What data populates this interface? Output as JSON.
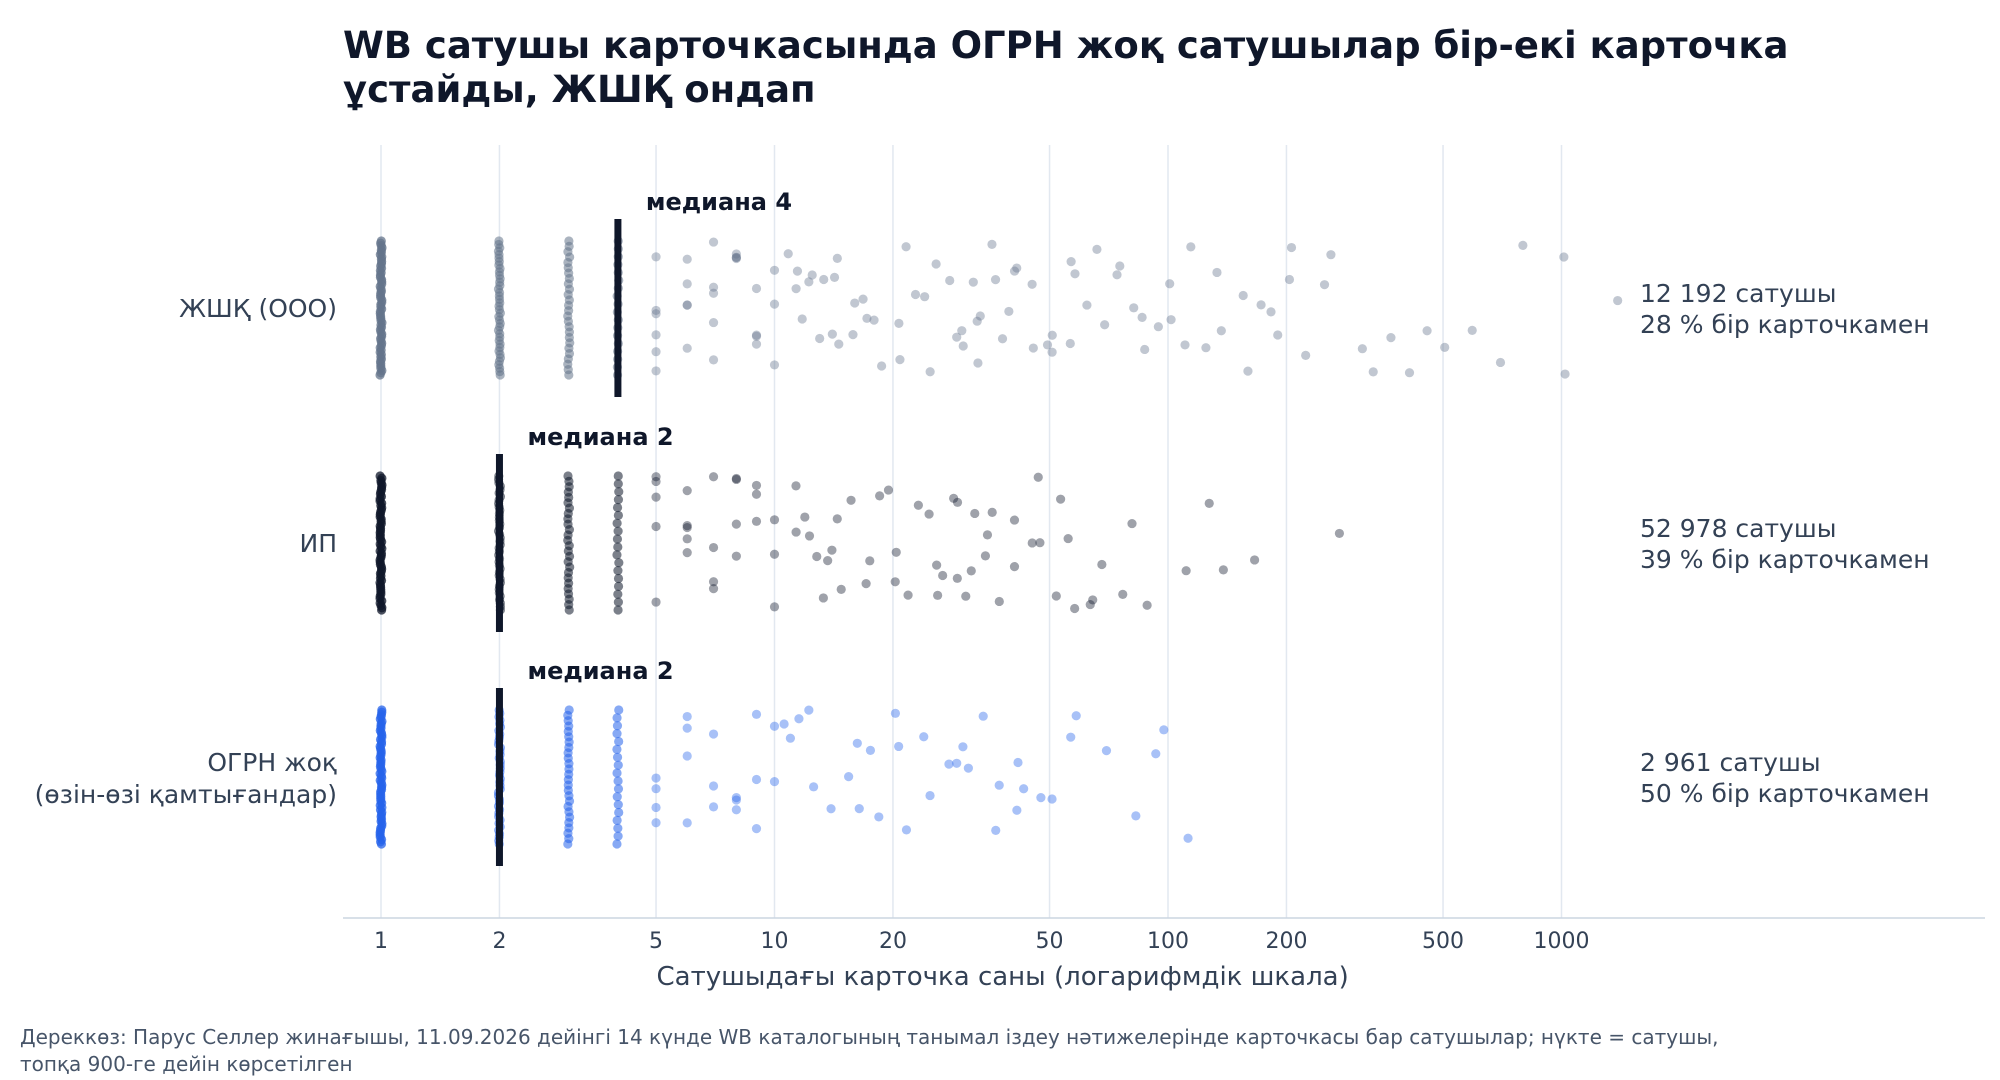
{
  "chart_data": {
    "type": "scatter",
    "title": "WB сатушы карточкасында ОГРН жоқ сатушылар бір-екі карточка ұстайды, ЖШҚ ондап",
    "xlabel": "Сатушыдағы карточка саны (логарифмдік шкала)",
    "x_scale": "log",
    "xlim": [
      0.8,
      3000
    ],
    "x_ticks": [
      1,
      2,
      5,
      10,
      20,
      50,
      100,
      200,
      500,
      1000
    ],
    "x_tick_labels": [
      "1",
      "2",
      "5",
      "10",
      "20",
      "50",
      "100",
      "200",
      "500",
      "1000"
    ],
    "grid": true,
    "colors": {
      "ЖШҚ": "#64748b",
      "ИП": "#0f172a",
      "ОГРН": "#2563eb",
      "median": "#0f172a",
      "text": "#334155",
      "axis": "#cbd5e1"
    },
    "groups": [
      {
        "label": "ЖШҚ (ООО)",
        "median": 4,
        "median_label": "медиана 4",
        "sellers_label": "12 192 сатушы",
        "share_label": "28 % бір карточкамен",
        "color": "#64748b",
        "dots_shown": 900,
        "points_beyond_median": [
          5,
          5,
          5,
          5,
          5,
          5,
          6,
          6,
          6,
          6,
          6,
          7,
          7,
          7,
          7,
          7,
          8,
          8,
          8,
          8,
          9,
          9,
          9,
          9,
          10,
          10,
          10,
          11,
          11,
          11,
          12,
          12,
          12,
          13,
          13,
          14,
          14,
          15,
          15,
          16,
          16,
          17,
          17,
          18,
          19,
          20,
          21,
          22,
          23,
          24,
          25,
          26,
          27,
          28,
          29,
          30,
          31,
          32,
          33,
          34,
          35,
          36,
          37,
          38,
          40,
          42,
          44,
          46,
          48,
          50,
          52,
          55,
          58,
          60,
          63,
          66,
          70,
          73,
          77,
          80,
          85,
          90,
          95,
          100,
          105,
          110,
          115,
          120,
          130,
          140,
          150,
          160,
          170,
          180,
          190,
          200,
          210,
          230,
          250,
          270,
          300,
          330,
          360,
          400,
          450,
          520,
          600,
          700,
          800,
          1000,
          1050,
          1400
        ]
      },
      {
        "label": "ИП",
        "median": 2,
        "median_label": "медиана 2",
        "sellers_label": "52 978 сатушы",
        "share_label": "39 % бір карточкамен",
        "color": "#0f172a",
        "dots_shown": 900,
        "points_beyond_median": [
          5,
          5,
          5,
          5,
          5,
          6,
          6,
          6,
          6,
          6,
          7,
          7,
          7,
          7,
          8,
          8,
          8,
          8,
          9,
          9,
          9,
          10,
          10,
          10,
          11,
          11,
          12,
          12,
          13,
          13,
          14,
          14,
          15,
          15,
          16,
          17,
          17,
          18,
          19,
          20,
          21,
          22,
          23,
          24,
          25,
          26,
          27,
          28,
          29,
          30,
          31,
          32,
          33,
          34,
          35,
          36,
          38,
          40,
          42,
          44,
          46,
          48,
          50,
          52,
          55,
          58,
          62,
          66,
          70,
          75,
          80,
          90,
          110,
          125,
          140,
          160,
          275
        ]
      },
      {
        "label": "ОГРН жоқ\n(өзін-өзі қамтығандар)",
        "median": 2,
        "median_label": "медиана 2",
        "sellers_label": "2 961 сатушы",
        "share_label": "50 % бір карточкамен",
        "color": "#2563eb",
        "dots_shown": 900,
        "points_beyond_median": [
          5,
          5,
          5,
          5,
          6,
          6,
          6,
          6,
          7,
          7,
          7,
          8,
          8,
          8,
          9,
          9,
          9,
          10,
          10,
          11,
          11,
          12,
          12,
          13,
          14,
          15,
          16,
          17,
          18,
          19,
          20,
          21,
          22,
          24,
          25,
          27,
          28,
          30,
          32,
          34,
          36,
          38,
          40,
          42,
          44,
          48,
          52,
          55,
          60,
          70,
          80,
          90,
          100,
          110
        ]
      }
    ]
  },
  "footer": {
    "source_line1": "Дереккөз: Парус Селлер жинағышы, 11.09.2026 дейінгі 14 күнде WB каталогының танымал іздеу нәтижелерінде карточкасы бар сатушылар; нүкте = сатушы,",
    "source_line2": "топқа 900-ге дейін көрсетілген"
  }
}
